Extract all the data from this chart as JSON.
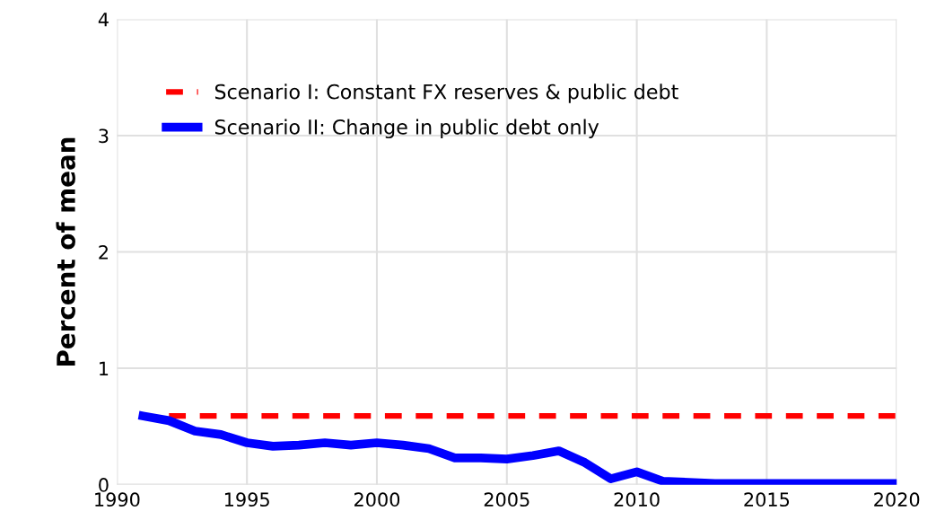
{
  "chart_data": {
    "type": "line",
    "ylabel": "Percent of mean",
    "xlim": [
      1990,
      2020
    ],
    "xticks": [
      1990,
      1995,
      2000,
      2005,
      2010,
      2015,
      2020
    ],
    "ylim": [
      0,
      4
    ],
    "yticks": [
      0,
      1,
      2,
      3,
      4
    ],
    "grid": true,
    "legend": "top left",
    "series": [
      {
        "name": "Scenario I: Constant FX reserves & public debt",
        "color": "#ff0000",
        "line_style": "dashed",
        "x": [
          1992,
          2020
        ],
        "values": [
          0.59,
          0.59
        ]
      },
      {
        "name": "Scenario II: Change in public debt only",
        "color": "#0000ff",
        "line_style": "solid",
        "x": [
          1991,
          1992,
          1993,
          1994,
          1995,
          1996,
          1997,
          1998,
          1999,
          2000,
          2001,
          2002,
          2003,
          2004,
          2005,
          2006,
          2007,
          2008,
          2009,
          2010,
          2011,
          2012,
          2013,
          2014,
          2015,
          2016,
          2017,
          2018,
          2019,
          2020
        ],
        "values": [
          0.59,
          0.55,
          0.46,
          0.43,
          0.36,
          0.33,
          0.34,
          0.36,
          0.34,
          0.36,
          0.34,
          0.31,
          0.23,
          0.23,
          0.22,
          0.25,
          0.29,
          0.19,
          0.05,
          0.11,
          0.03,
          0.02,
          0.01,
          0.01,
          0.01,
          0.01,
          0.01,
          0.01,
          0.01,
          0.01
        ]
      }
    ]
  }
}
